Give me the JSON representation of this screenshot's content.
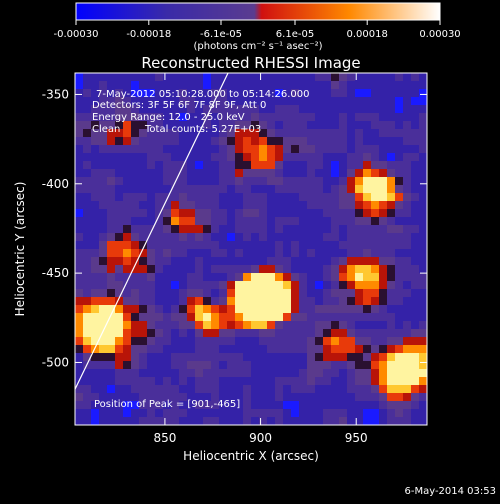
{
  "colorbar": {
    "ticks": [
      "-0.00030",
      "-0.00018",
      "-6.1e-05",
      "6.1e-05",
      "0.00018",
      "0.00030"
    ],
    "tick_values": [
      -0.0003,
      -0.00018,
      -6.1e-05,
      6.1e-05,
      0.00018,
      0.0003
    ],
    "range": [
      -0.0003,
      0.0003
    ],
    "unit_label": "(photons cm⁻² s⁻¹ asec⁻²)"
  },
  "chart_data": {
    "type": "heatmap",
    "title": "Reconstructed RHESSI Image",
    "xlabel": "Heliocentric X (arcsec)",
    "ylabel": "Heliocentric Y (arcsec)",
    "xlim": [
      803,
      987
    ],
    "ylim": [
      -535,
      -338
    ],
    "xticks": [
      850,
      900,
      950
    ],
    "yticks": [
      -350,
      -400,
      -450,
      -500
    ],
    "peak": {
      "x": 901,
      "y": -465
    },
    "limb_line": [
      [
        803,
        -515
      ],
      [
        883,
        -338
      ]
    ],
    "grid": false,
    "colormap": [
      "#0000ff",
      "#3020a0",
      "#50309a",
      "#5a3c90",
      "#e52410",
      "#ff8c00",
      "#ffd040",
      "#ffffff"
    ]
  },
  "annotations": {
    "time_range": "7-May-2012 05:10:28.000 to 05:14:26.000",
    "detectors": "Detectors: 3F 5F 6F 7F 8F 9F, Att 0",
    "energy": "Energy Range: 12.0 - 25.0 keV",
    "algorithm": "Clean",
    "counts": "Total counts: 5.27E+03",
    "peak_label": "Position of Peak = [901,-465]"
  },
  "footer": {
    "date": "6-May-2014 03:53"
  }
}
